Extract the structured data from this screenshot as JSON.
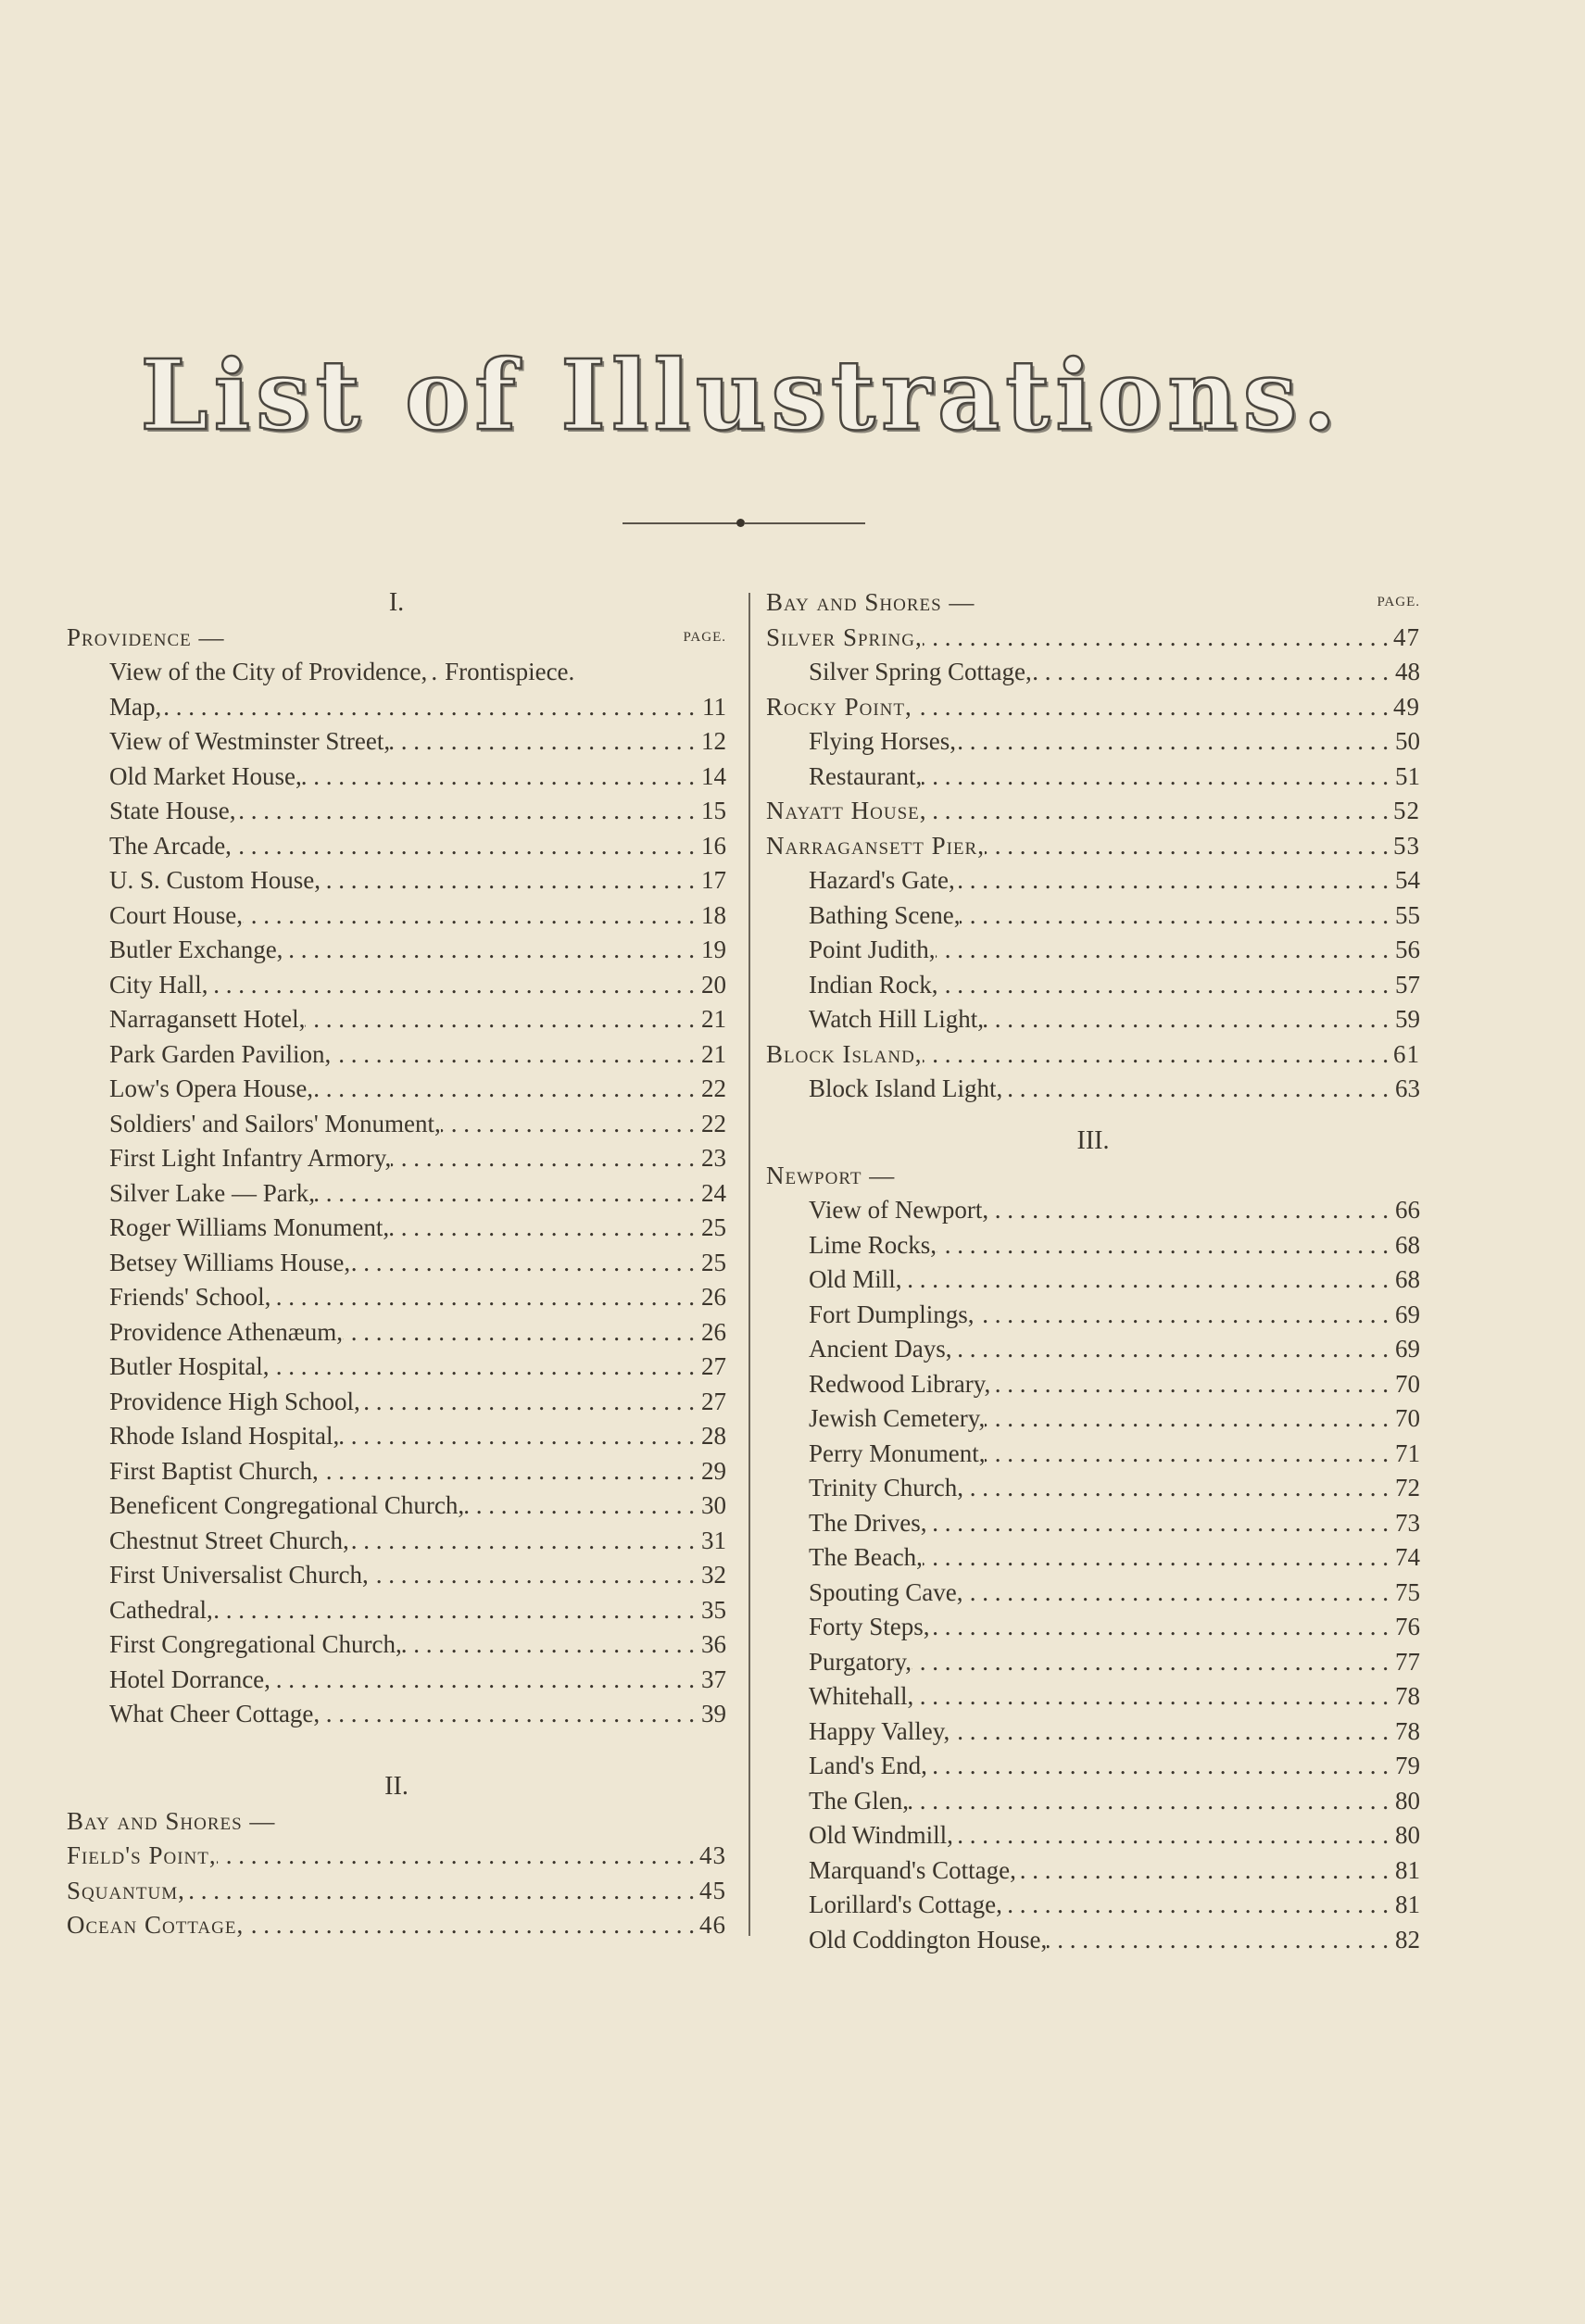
{
  "title": "List of Illustrations.",
  "left_column": [
    {
      "type": "section",
      "text": "I."
    },
    {
      "type": "heading",
      "text": "Providence —",
      "page_label": "PAGE."
    },
    {
      "type": "entry",
      "label": "View of the City of Providence,",
      "page": "Frontispiece.",
      "noleader": true
    },
    {
      "type": "entry",
      "label": "Map,",
      "page": "11"
    },
    {
      "type": "entry",
      "label": "View of Westminster Street,",
      "page": "12"
    },
    {
      "type": "entry",
      "label": "Old Market House,",
      "page": "14"
    },
    {
      "type": "entry",
      "label": "State House,",
      "page": "15"
    },
    {
      "type": "entry",
      "label": "The Arcade,",
      "page": "16"
    },
    {
      "type": "entry",
      "label": "U. S. Custom House,",
      "page": "17"
    },
    {
      "type": "entry",
      "label": "Court House,",
      "page": "18"
    },
    {
      "type": "entry",
      "label": "Butler Exchange,",
      "page": "19"
    },
    {
      "type": "entry",
      "label": "City Hall,",
      "page": "20"
    },
    {
      "type": "entry",
      "label": "Narragansett Hotel,",
      "page": "21"
    },
    {
      "type": "entry",
      "label": "Park Garden Pavilion,",
      "page": "21"
    },
    {
      "type": "entry",
      "label": "Low's Opera House,",
      "page": "22"
    },
    {
      "type": "entry",
      "label": "Soldiers' and Sailors' Monument,",
      "page": "22"
    },
    {
      "type": "entry",
      "label": "First Light Infantry Armory,",
      "page": "23"
    },
    {
      "type": "entry",
      "label": "Silver Lake — Park,",
      "page": "24"
    },
    {
      "type": "entry",
      "label": "Roger Williams Monument,",
      "page": "25"
    },
    {
      "type": "entry",
      "label": "Betsey Williams House,",
      "page": "25"
    },
    {
      "type": "entry",
      "label": "Friends' School,",
      "page": "26"
    },
    {
      "type": "entry",
      "label": "Providence Athenæum,",
      "page": "26"
    },
    {
      "type": "entry",
      "label": "Butler Hospital,",
      "page": "27"
    },
    {
      "type": "entry",
      "label": "Providence High School,",
      "page": "27"
    },
    {
      "type": "entry",
      "label": "Rhode Island Hospital,",
      "page": "28"
    },
    {
      "type": "entry",
      "label": "First Baptist Church,",
      "page": "29"
    },
    {
      "type": "entry",
      "label": "Beneficent Congregational Church,",
      "page": "30"
    },
    {
      "type": "entry",
      "label": "Chestnut Street Church,",
      "page": "31"
    },
    {
      "type": "entry",
      "label": "First Universalist Church,",
      "page": "32"
    },
    {
      "type": "entry",
      "label": "Cathedral,",
      "page": "35"
    },
    {
      "type": "entry",
      "label": "First Congregational Church,",
      "page": "36"
    },
    {
      "type": "entry",
      "label": "Hotel Dorrance,",
      "page": "37"
    },
    {
      "type": "entry",
      "label": "What Cheer Cottage,",
      "page": "39"
    },
    {
      "type": "section",
      "text": "II.",
      "tall": 78
    },
    {
      "type": "heading",
      "text": "Bay and Shores —"
    },
    {
      "type": "mainentry",
      "label": "Field's Point,",
      "page": "43"
    },
    {
      "type": "mainentry",
      "label": "Squantum,",
      "page": "45"
    },
    {
      "type": "mainentry",
      "label": "Ocean Cottage,",
      "page": "46"
    }
  ],
  "right_column": [
    {
      "type": "heading",
      "text": "Bay and Shores —",
      "page_label": "PAGE."
    },
    {
      "type": "mainentry",
      "label": "Silver Spring,",
      "page": "47"
    },
    {
      "type": "entry",
      "label": "Silver Spring Cottage,",
      "page": "48"
    },
    {
      "type": "mainentry",
      "label": "Rocky Point,",
      "page": "49"
    },
    {
      "type": "entry",
      "label": "Flying Horses,",
      "page": "50"
    },
    {
      "type": "entry",
      "label": "Restaurant,",
      "page": "51"
    },
    {
      "type": "mainentry",
      "label": "Nayatt House,",
      "page": "52"
    },
    {
      "type": "mainentry",
      "label": "Narragansett Pier,",
      "page": "53"
    },
    {
      "type": "entry",
      "label": "Hazard's Gate,",
      "page": "54"
    },
    {
      "type": "entry",
      "label": "Bathing Scene,",
      "page": "55"
    },
    {
      "type": "entry",
      "label": "Point Judith,",
      "page": "56"
    },
    {
      "type": "entry",
      "label": "Indian Rock,",
      "page": "57"
    },
    {
      "type": "entry",
      "label": "Watch Hill Light,",
      "page": "59"
    },
    {
      "type": "mainentry",
      "label": "Block Island,",
      "page": "61"
    },
    {
      "type": "entry",
      "label": "Block Island Light,",
      "page": "63"
    },
    {
      "type": "section",
      "text": "III.",
      "tall": 56
    },
    {
      "type": "heading",
      "text": "Newport —"
    },
    {
      "type": "entry",
      "label": "View of Newport,",
      "page": "66"
    },
    {
      "type": "entry",
      "label": "Lime Rocks,",
      "page": "68"
    },
    {
      "type": "entry",
      "label": "Old Mill,",
      "page": "68"
    },
    {
      "type": "entry",
      "label": "Fort Dumplings,",
      "page": "69"
    },
    {
      "type": "entry",
      "label": "Ancient Days,",
      "page": "69"
    },
    {
      "type": "entry",
      "label": "Redwood Library,",
      "page": "70"
    },
    {
      "type": "entry",
      "label": "Jewish Cemetery,",
      "page": "70"
    },
    {
      "type": "entry",
      "label": "Perry Monument,",
      "page": "71"
    },
    {
      "type": "entry",
      "label": "Trinity Church,",
      "page": "72"
    },
    {
      "type": "entry",
      "label": "The Drives,",
      "page": "73"
    },
    {
      "type": "entry",
      "label": "The Beach,",
      "page": "74"
    },
    {
      "type": "entry",
      "label": "Spouting Cave,",
      "page": "75"
    },
    {
      "type": "entry",
      "label": "Forty Steps,",
      "page": "76"
    },
    {
      "type": "entry",
      "label": "Purgatory,",
      "page": "77"
    },
    {
      "type": "entry",
      "label": "Whitehall,",
      "page": "78"
    },
    {
      "type": "entry",
      "label": "Happy Valley,",
      "page": "78"
    },
    {
      "type": "entry",
      "label": "Land's End,",
      "page": "79"
    },
    {
      "type": "entry",
      "label": "The Glen,",
      "page": "80"
    },
    {
      "type": "entry",
      "label": "Old Windmill,",
      "page": "80"
    },
    {
      "type": "entry",
      "label": "Marquand's Cottage,",
      "page": "81"
    },
    {
      "type": "entry",
      "label": "Lorillard's Cottage,",
      "page": "81"
    },
    {
      "type": "entry",
      "label": "Old Coddington House,",
      "page": "82"
    }
  ]
}
